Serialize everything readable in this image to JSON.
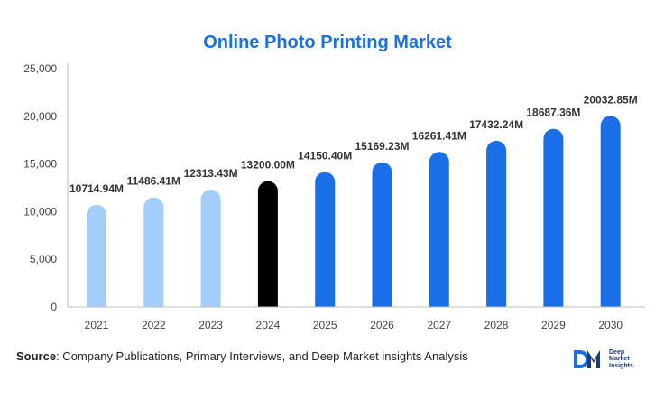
{
  "chart_data": {
    "type": "bar",
    "title": "Online Photo Printing Market",
    "categories": [
      "2021",
      "2022",
      "2023",
      "2024",
      "2025",
      "2026",
      "2027",
      "2028",
      "2029",
      "2030"
    ],
    "values": [
      10714.94,
      11486.41,
      12313.43,
      13200.0,
      14150.4,
      15169.23,
      16261.41,
      17432.24,
      18687.36,
      20032.85
    ],
    "data_labels": [
      "10714.94M",
      "11486.41M",
      "12313.43M",
      "13200.00M",
      "14150.40M",
      "15169.23M",
      "16261.41M",
      "17432.24M",
      "18687.36M",
      "20032.85M"
    ],
    "bar_colors": [
      "#a3cdfb",
      "#a3cdfb",
      "#a3cdfb",
      "#000000",
      "#1a6fe8",
      "#1a6fe8",
      "#1a6fe8",
      "#1a6fe8",
      "#1a6fe8",
      "#1a6fe8"
    ],
    "ylim": [
      0,
      25000
    ],
    "yticks": [
      0,
      5000,
      10000,
      15000,
      20000,
      25000
    ],
    "ytick_labels": [
      "0",
      "5,000",
      "10,000",
      "15,000",
      "20,000",
      "25,000"
    ],
    "xlabel": "",
    "ylabel": "",
    "grid": false,
    "legend": "none"
  },
  "footer": {
    "source_label": "Source",
    "source_text": ": Company Publications, Primary Interviews, and Deep Market insights Analysis"
  },
  "logo": {
    "mark": "DM",
    "text": "Deep\nMarket\nInsights"
  },
  "colors": {
    "title": "#1a6fe8",
    "historical": "#a3cdfb",
    "base_year": "#000000",
    "forecast": "#1a6fe8"
  }
}
